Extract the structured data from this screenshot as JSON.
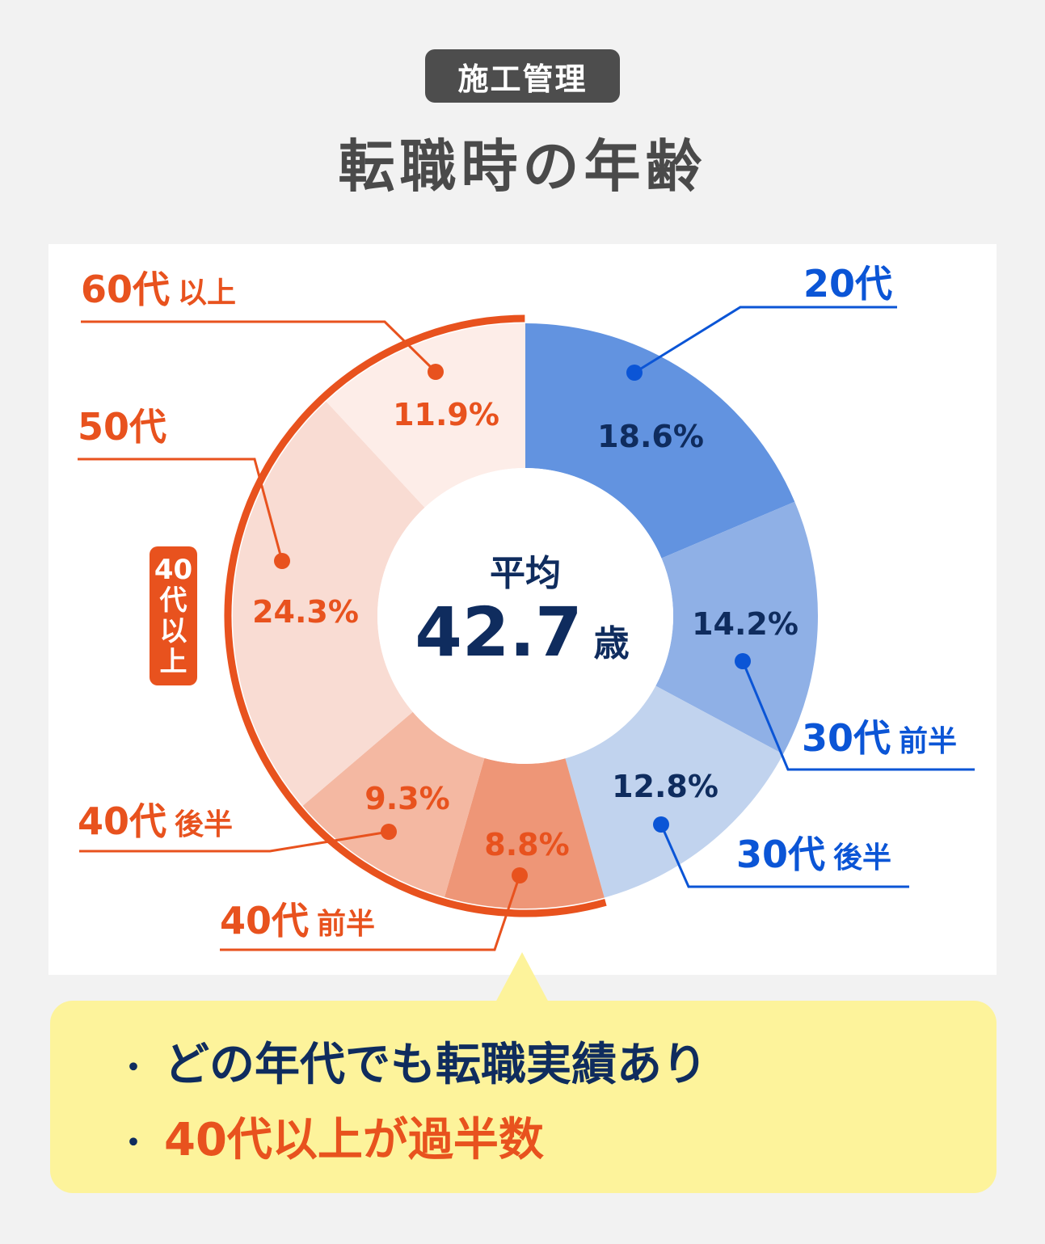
{
  "header": {
    "category_badge": "施工管理",
    "title": "転職時の年齢"
  },
  "center": {
    "label": "平均",
    "value": "42.7",
    "unit": "歳"
  },
  "group_badge": {
    "lines": [
      "40",
      "代",
      "以",
      "上"
    ],
    "color": "#e8521e"
  },
  "labels": {
    "age20": {
      "main": "20代",
      "sub": ""
    },
    "age30a": {
      "main": "30代",
      "sub": "前半"
    },
    "age30b": {
      "main": "30代",
      "sub": "後半"
    },
    "age40a": {
      "main": "40代",
      "sub": "前半"
    },
    "age40b": {
      "main": "40代",
      "sub": "後半"
    },
    "age50": {
      "main": "50代",
      "sub": ""
    },
    "age60": {
      "main": "60代",
      "sub": "以上"
    }
  },
  "percent_labels": {
    "age20": "18.6%",
    "age30a": "14.2%",
    "age30b": "12.8%",
    "age40a": "8.8%",
    "age40b": "9.3%",
    "age50": "24.3%",
    "age60": "11.9%"
  },
  "callout": {
    "bullet": "・",
    "items": [
      "どの年代でも転職実績あり",
      "40代以上が過半数"
    ]
  },
  "colors": {
    "accent_orange": "#e8521e",
    "accent_blue": "#0b55d6",
    "navy": "#0f2c5e",
    "callout_bg": "#fdf39b"
  },
  "chart_data": {
    "type": "pie",
    "subtype": "donut",
    "title": "転職時の年齢",
    "subtitle": "施工管理",
    "center_text": "平均 42.7 歳",
    "categories": [
      "20代",
      "30代 前半",
      "30代 後半",
      "40代 前半",
      "40代 後半",
      "50代",
      "60代 以上"
    ],
    "values": [
      18.6,
      14.2,
      12.8,
      8.8,
      9.3,
      24.3,
      11.9
    ],
    "unit": "%",
    "slice_colors": [
      "#6293e0",
      "#8fb0e6",
      "#c1d3ee",
      "#ee9677",
      "#f4b8a2",
      "#f9dcd3",
      "#fdede8"
    ],
    "start_angle_deg": 0,
    "direction": "clockwise",
    "group_highlight": {
      "label": "40代以上",
      "categories": [
        "40代 前半",
        "40代 後半",
        "50代",
        "60代 以上"
      ],
      "color": "#e8521e"
    },
    "annotations": [
      "どの年代でも転職実績あり",
      "40代以上が過半数"
    ]
  }
}
